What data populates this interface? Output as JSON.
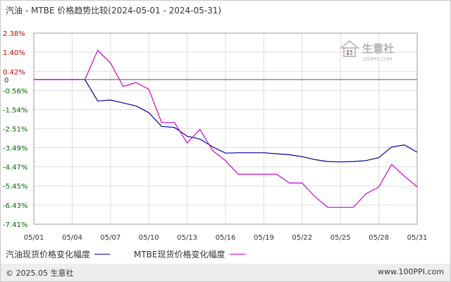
{
  "chart_data": {
    "type": "line",
    "title": "汽油 - MTBE 价格趋势比较(2024-05-01 - 2024-05-31)",
    "x_tick_labels": [
      "05/01",
      "05/04",
      "05/07",
      "05/10",
      "05/13",
      "05/16",
      "05/19",
      "05/22",
      "05/25",
      "05/28",
      "05/31"
    ],
    "y_tick_labels": [
      "2.38%",
      "1.40%",
      "0.42%",
      "0",
      "-0.56%",
      "-1.54%",
      "-2.51%",
      "-3.49%",
      "-4.47%",
      "-5.45%",
      "-6.43%",
      "-7.41%"
    ],
    "y_tick_values": [
      2.38,
      1.4,
      0.42,
      0,
      -0.56,
      -1.54,
      -2.51,
      -3.49,
      -4.47,
      -5.45,
      -6.43,
      -7.41
    ],
    "ylim": [
      -7.41,
      2.38
    ],
    "xlim": [
      1,
      31
    ],
    "grid": true,
    "legend_position": "bottom-left",
    "series": [
      {
        "name": "汽油现货价格变化幅度",
        "color": "#000099",
        "points": [
          [
            1,
            0
          ],
          [
            5,
            0
          ],
          [
            6,
            -1.1
          ],
          [
            7,
            -1.05
          ],
          [
            8,
            -1.2
          ],
          [
            9,
            -1.35
          ],
          [
            10,
            -1.7
          ],
          [
            11,
            -2.4
          ],
          [
            12,
            -2.45
          ],
          [
            13,
            -2.9
          ],
          [
            14,
            -3.05
          ],
          [
            15,
            -3.45
          ],
          [
            16,
            -3.77
          ],
          [
            17,
            -3.75
          ],
          [
            18,
            -3.75
          ],
          [
            19,
            -3.75
          ],
          [
            20,
            -3.8
          ],
          [
            21,
            -3.85
          ],
          [
            22,
            -3.95
          ],
          [
            23,
            -4.1
          ],
          [
            24,
            -4.2
          ],
          [
            25,
            -4.22
          ],
          [
            26,
            -4.2
          ],
          [
            27,
            -4.15
          ],
          [
            28,
            -4.0
          ],
          [
            29,
            -3.45
          ],
          [
            30,
            -3.35
          ],
          [
            31,
            -3.72
          ]
        ]
      },
      {
        "name": "MTBE现货价格变化幅度",
        "color": "#cc00cc",
        "points": [
          [
            1,
            0
          ],
          [
            5,
            0
          ],
          [
            6,
            1.5
          ],
          [
            7,
            0.85
          ],
          [
            8,
            -0.35
          ],
          [
            9,
            -0.15
          ],
          [
            10,
            -0.5
          ],
          [
            11,
            -2.2
          ],
          [
            12,
            -2.2
          ],
          [
            13,
            -3.25
          ],
          [
            14,
            -2.55
          ],
          [
            15,
            -3.65
          ],
          [
            16,
            -4.15
          ],
          [
            17,
            -4.85
          ],
          [
            18,
            -4.85
          ],
          [
            19,
            -4.85
          ],
          [
            20,
            -4.85
          ],
          [
            21,
            -5.3
          ],
          [
            22,
            -5.3
          ],
          [
            23,
            -6.0
          ],
          [
            24,
            -6.55
          ],
          [
            25,
            -6.55
          ],
          [
            26,
            -6.55
          ],
          [
            27,
            -5.85
          ],
          [
            28,
            -5.5
          ],
          [
            29,
            -4.35
          ],
          [
            30,
            -4.95
          ],
          [
            31,
            -5.5
          ]
        ]
      }
    ]
  },
  "watermark": {
    "brand": "生意社",
    "sub": "100PPI.COM"
  },
  "footer": {
    "copyright": "© 2025.05 生意社",
    "url": "www.100PPI.com"
  }
}
